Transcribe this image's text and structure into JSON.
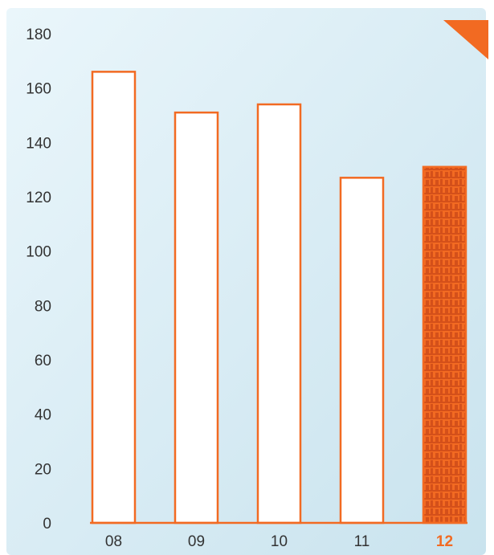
{
  "chart_data": {
    "type": "bar",
    "categories": [
      "08",
      "09",
      "10",
      "11",
      "12"
    ],
    "values": [
      166,
      151,
      154,
      127,
      131
    ],
    "highlight_index": 4,
    "title": "",
    "xlabel": "",
    "ylabel": "",
    "ylim": [
      0,
      180
    ],
    "yticks": [
      0,
      20,
      40,
      60,
      80,
      100,
      120,
      140,
      160,
      180
    ],
    "grid": false,
    "colors": {
      "accent": "#f26a22",
      "accent_dark": "#d4501a",
      "bar_fill": "#ffffff",
      "background_light": "#eaf6fb",
      "background_dark": "#c9e3ee",
      "axis_text": "#333333"
    }
  }
}
